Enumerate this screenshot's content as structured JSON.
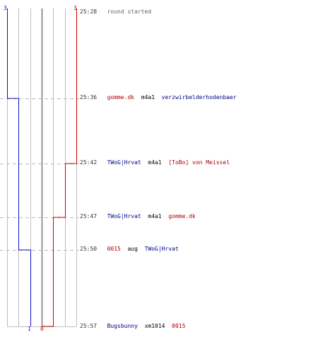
{
  "colors": {
    "team_blue": "#1010c8",
    "team_red": "#d00000",
    "name_blue": "#00008b",
    "name_red": "#b00000",
    "grid": "#bdbdbd",
    "center": "#777777",
    "dash": "#bbbbbb"
  },
  "score": {
    "blue_start": "3",
    "red_start": "3",
    "blue_end": "1",
    "red_end": "0"
  },
  "events": [
    {
      "time": "25:28",
      "parts": [
        {
          "text": "round started",
          "style": "gray"
        }
      ]
    },
    {
      "time": "25:36",
      "parts": [
        {
          "text": "gomme.dk",
          "style": "red"
        },
        {
          "text": " m4a1 ",
          "style": "blk"
        },
        {
          "text": "verzwirbelderhodenbaer",
          "style": "blue"
        }
      ]
    },
    {
      "time": "25:42",
      "parts": [
        {
          "text": "TWoG|Hrvat",
          "style": "blue"
        },
        {
          "text": " m4a1 ",
          "style": "blk"
        },
        {
          "text": "[ToBo] von Meissel",
          "style": "red"
        }
      ]
    },
    {
      "time": "25:47",
      "parts": [
        {
          "text": "TWoG|Hrvat",
          "style": "blue"
        },
        {
          "text": " m4a1 ",
          "style": "blk"
        },
        {
          "text": "gomme.dk",
          "style": "red"
        }
      ]
    },
    {
      "time": "25:50",
      "parts": [
        {
          "text": "0015",
          "style": "red"
        },
        {
          "text": " aug ",
          "style": "blk"
        },
        {
          "text": "TWoG|Hrvat",
          "style": "blue"
        }
      ]
    },
    {
      "time": "25:57",
      "parts": [
        {
          "text": "Bugsbunny",
          "style": "blue"
        },
        {
          "text": " xm1014 ",
          "style": "blk"
        },
        {
          "text": "0015",
          "style": "red"
        }
      ]
    }
  ],
  "chart_data": {
    "type": "line",
    "x": [
      "25:28",
      "25:36",
      "25:42",
      "25:47",
      "25:50",
      "25:57"
    ],
    "series": [
      {
        "values": [
          3,
          2,
          2,
          2,
          1,
          1
        ]
      },
      {
        "values": [
          3,
          3,
          2,
          1,
          1,
          0
        ]
      }
    ]
  }
}
